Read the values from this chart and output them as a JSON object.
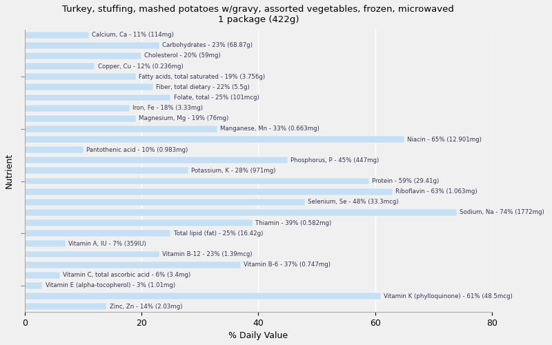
{
  "title": "Turkey, stuffing, mashed potatoes w/gravy, assorted vegetables, frozen, microwaved\n1 package (422g)",
  "xlabel": "% Daily Value",
  "ylabel": "Nutrient",
  "xlim": [
    0,
    80
  ],
  "bar_color": "#c5dff5",
  "background_color": "#f0f0f0",
  "plot_background": "#f0f0f0",
  "text_color": "#333355",
  "nutrients": [
    {
      "label": "Calcium, Ca - 11% (114mg)",
      "value": 11
    },
    {
      "label": "Carbohydrates - 23% (68.87g)",
      "value": 23
    },
    {
      "label": "Cholesterol - 20% (59mg)",
      "value": 20
    },
    {
      "label": "Copper, Cu - 12% (0.236mg)",
      "value": 12
    },
    {
      "label": "Fatty acids, total saturated - 19% (3.756g)",
      "value": 19
    },
    {
      "label": "Fiber, total dietary - 22% (5.5g)",
      "value": 22
    },
    {
      "label": "Folate, total - 25% (101mcg)",
      "value": 25
    },
    {
      "label": "Iron, Fe - 18% (3.33mg)",
      "value": 18
    },
    {
      "label": "Magnesium, Mg - 19% (76mg)",
      "value": 19
    },
    {
      "label": "Manganese, Mn - 33% (0.663mg)",
      "value": 33
    },
    {
      "label": "Niacin - 65% (12.901mg)",
      "value": 65
    },
    {
      "label": "Pantothenic acid - 10% (0.983mg)",
      "value": 10
    },
    {
      "label": "Phosphorus, P - 45% (447mg)",
      "value": 45
    },
    {
      "label": "Potassium, K - 28% (971mg)",
      "value": 28
    },
    {
      "label": "Protein - 59% (29.41g)",
      "value": 59
    },
    {
      "label": "Riboflavin - 63% (1.063mg)",
      "value": 63
    },
    {
      "label": "Selenium, Se - 48% (33.3mcg)",
      "value": 48
    },
    {
      "label": "Sodium, Na - 74% (1772mg)",
      "value": 74
    },
    {
      "label": "Thiamin - 39% (0.582mg)",
      "value": 39
    },
    {
      "label": "Total lipid (fat) - 25% (16.42g)",
      "value": 25
    },
    {
      "label": "Vitamin A, IU - 7% (359IU)",
      "value": 7
    },
    {
      "label": "Vitamin B-12 - 23% (1.39mcg)",
      "value": 23
    },
    {
      "label": "Vitamin B-6 - 37% (0.747mg)",
      "value": 37
    },
    {
      "label": "Vitamin C, total ascorbic acid - 6% (3.4mg)",
      "value": 6
    },
    {
      "label": "Vitamin E (alpha-tocopherol) - 3% (1.01mg)",
      "value": 3
    },
    {
      "label": "Vitamin K (phylloquinone) - 61% (48.5mcg)",
      "value": 61
    },
    {
      "label": "Zinc, Zn - 14% (2.03mg)",
      "value": 14
    }
  ]
}
